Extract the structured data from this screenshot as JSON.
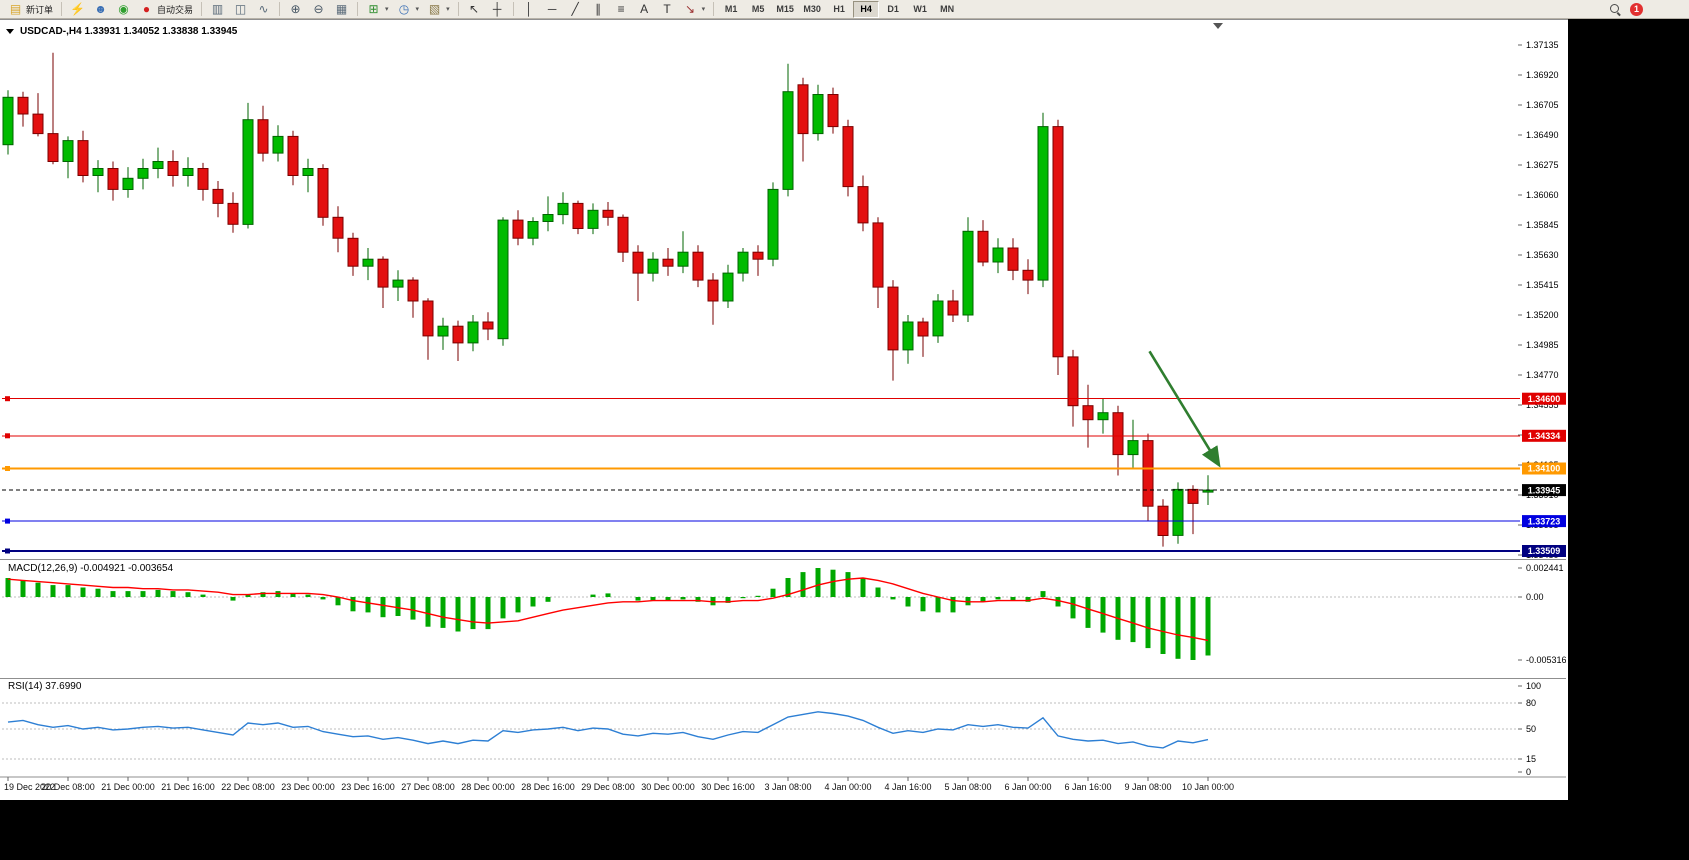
{
  "toolbar": {
    "new_order": {
      "label": "新订单"
    },
    "autotrading": {
      "label": "自动交易"
    },
    "sections": [
      {
        "type": "button",
        "name": "new-order-button",
        "icon_name": "new-order-icon",
        "glyph": "▤",
        "color": "#d8a52c",
        "label_key": "new_order"
      },
      {
        "type": "sep"
      },
      {
        "type": "icon",
        "name": "metaeditor-button",
        "icon_name": "lightning-icon",
        "glyph": "⚡",
        "color": "#c98a10"
      },
      {
        "type": "icon",
        "name": "support-button",
        "icon_name": "headset-icon",
        "glyph": "☻",
        "color": "#3a6fb5"
      },
      {
        "type": "icon",
        "name": "community-button",
        "icon_name": "signal-icon",
        "glyph": "◉",
        "color": "#2f9f2f"
      },
      {
        "type": "button",
        "name": "autotrading-button",
        "icon_name": "autotrading-icon",
        "glyph": "●",
        "color": "#d42020",
        "label_key": "autotrading"
      },
      {
        "type": "sep"
      },
      {
        "type": "icon",
        "name": "bar-chart-button",
        "icon_name": "bar-chart-icon",
        "glyph": "▥",
        "color": "#5a6b7a"
      },
      {
        "type": "icon",
        "name": "candlestick-chart-button",
        "icon_name": "candlestick-icon",
        "glyph": "◫",
        "color": "#5a6b7a"
      },
      {
        "type": "icon",
        "name": "line-chart-button",
        "icon_name": "line-chart-icon",
        "glyph": "∿",
        "color": "#5a6b7a"
      },
      {
        "type": "sep"
      },
      {
        "type": "icon",
        "name": "zoom-in-button",
        "icon_name": "zoom-in-icon",
        "glyph": "⊕",
        "color": "#465664"
      },
      {
        "type": "icon",
        "name": "zoom-out-button",
        "icon_name": "zoom-out-icon",
        "glyph": "⊖",
        "color": "#465664"
      },
      {
        "type": "icon",
        "name": "tile-windows-button",
        "icon_name": "tile-windows-icon",
        "glyph": "▦",
        "color": "#5a6b7a"
      },
      {
        "type": "sep"
      },
      {
        "type": "icon",
        "name": "indicators-button",
        "icon_name": "indicators-icon",
        "glyph": "⊞",
        "color": "#2f8f2f",
        "caret": true
      },
      {
        "type": "icon",
        "name": "periods-button",
        "icon_name": "clock-icon",
        "glyph": "◷",
        "color": "#3a6fb5",
        "caret": true
      },
      {
        "type": "icon",
        "name": "templates-button",
        "icon_name": "template-icon",
        "glyph": "▧",
        "color": "#8a7a4a",
        "caret": true
      },
      {
        "type": "sep"
      },
      {
        "type": "icon",
        "name": "cursor-button",
        "icon_name": "cursor-icon",
        "glyph": "↖",
        "color": "#333333"
      },
      {
        "type": "icon",
        "name": "crosshair-button",
        "icon_name": "crosshair-icon",
        "glyph": "┼",
        "color": "#333333"
      },
      {
        "type": "sep"
      },
      {
        "type": "icon",
        "name": "vertical-line-button",
        "icon_name": "vertical-line-icon",
        "glyph": "│",
        "color": "#333333"
      },
      {
        "type": "icon",
        "name": "horizontal-line-button",
        "icon_name": "horizontal-line-icon",
        "glyph": "─",
        "color": "#333333"
      },
      {
        "type": "icon",
        "name": "trendline-button",
        "icon_name": "trendline-icon",
        "glyph": "╱",
        "color": "#333333"
      },
      {
        "type": "icon",
        "name": "channel-button",
        "icon_name": "channel-icon",
        "glyph": "∥",
        "color": "#333333"
      },
      {
        "type": "icon",
        "name": "fibonacci-button",
        "icon_name": "fibonacci-icon",
        "glyph": "≡",
        "color": "#333333"
      },
      {
        "type": "icon",
        "name": "text-button",
        "icon_name": "text-icon",
        "glyph": "A",
        "color": "#333333"
      },
      {
        "type": "icon",
        "name": "label-button",
        "icon_name": "label-icon",
        "glyph": "T",
        "color": "#333333"
      },
      {
        "type": "icon",
        "name": "arrows-button",
        "icon_name": "arrow-icon",
        "glyph": "↘",
        "color": "#9a2f2f",
        "caret": true
      },
      {
        "type": "sep"
      },
      {
        "type": "timeframes"
      }
    ],
    "timeframes": {
      "items": [
        "M1",
        "M5",
        "M15",
        "M30",
        "H1",
        "H4",
        "D1",
        "W1",
        "MN"
      ],
      "active": "H4"
    },
    "notifications": {
      "count": "1"
    }
  },
  "chart": {
    "title": "USDCAD-,H4 1.33931 1.34052 1.33838 1.33945",
    "symbol": "USDCAD-",
    "period": "H4",
    "open": "1.33931",
    "high": "1.34052",
    "low": "1.33838",
    "close": "1.33945"
  },
  "indicators": {
    "macd": {
      "label": "MACD(12,26,9)",
      "value": "-0.004921",
      "signal_value": "-0.003654",
      "display": "MACD(12,26,9) -0.004921 -0.003654",
      "axis_labels": [
        "0.002441",
        "0.00",
        "-0.005316"
      ]
    },
    "rsi": {
      "label": "RSI(14)",
      "value": "37.6990",
      "display": "RSI(14) 37.6990",
      "axis_labels": [
        "100",
        "80",
        "50",
        "15",
        "0"
      ]
    }
  },
  "chart_data": {
    "type": "candlestick",
    "symbol": "USDCAD-",
    "timeframe": "H4",
    "price_axis": {
      "top_price": 1.37135,
      "price_step": 0.00215,
      "labels": [
        "1.37135",
        "1.36920",
        "1.36705",
        "1.36490",
        "1.36275",
        "1.36060",
        "1.35845",
        "1.35630",
        "1.35415",
        "1.35200",
        "1.34985",
        "1.34770",
        "1.34555",
        "1.34340",
        "1.34125",
        "1.33910",
        "1.33695",
        "1.33480"
      ]
    },
    "time_labels": [
      "19 Dec 2022",
      "20 Dec 08:00",
      "21 Dec 00:00",
      "21 Dec 16:00",
      "22 Dec 08:00",
      "23 Dec 00:00",
      "23 Dec 16:00",
      "27 Dec 08:00",
      "28 Dec 00:00",
      "28 Dec 16:00",
      "29 Dec 08:00",
      "30 Dec 00:00",
      "30 Dec 16:00",
      "3 Jan 08:00",
      "4 Jan 00:00",
      "4 Jan 16:00",
      "5 Jan 08:00",
      "6 Jan 00:00",
      "6 Jan 16:00",
      "9 Jan 08:00",
      "10 Jan 00:00"
    ],
    "candles": [
      [
        1.3642,
        1.3681,
        1.3635,
        1.3676
      ],
      [
        1.3676,
        1.368,
        1.3655,
        1.3664
      ],
      [
        1.3664,
        1.3679,
        1.3648,
        1.365
      ],
      [
        1.365,
        1.3708,
        1.3628,
        1.363
      ],
      [
        1.363,
        1.3648,
        1.3618,
        1.3645
      ],
      [
        1.3645,
        1.3652,
        1.3615,
        1.362
      ],
      [
        1.362,
        1.3631,
        1.3608,
        1.3625
      ],
      [
        1.3625,
        1.363,
        1.3602,
        1.361
      ],
      [
        1.361,
        1.3626,
        1.3604,
        1.3618
      ],
      [
        1.3618,
        1.3632,
        1.361,
        1.3625
      ],
      [
        1.3625,
        1.364,
        1.3618,
        1.363
      ],
      [
        1.363,
        1.3638,
        1.3612,
        1.362
      ],
      [
        1.362,
        1.3633,
        1.3612,
        1.3625
      ],
      [
        1.3625,
        1.3629,
        1.3602,
        1.361
      ],
      [
        1.361,
        1.3616,
        1.359,
        1.36
      ],
      [
        1.36,
        1.3608,
        1.3579,
        1.3585
      ],
      [
        1.3585,
        1.3672,
        1.3582,
        1.366
      ],
      [
        1.366,
        1.367,
        1.363,
        1.3636
      ],
      [
        1.3636,
        1.3656,
        1.363,
        1.3648
      ],
      [
        1.3648,
        1.3652,
        1.3613,
        1.362
      ],
      [
        1.362,
        1.3632,
        1.3608,
        1.3625
      ],
      [
        1.3625,
        1.3628,
        1.3584,
        1.359
      ],
      [
        1.359,
        1.3598,
        1.3565,
        1.3575
      ],
      [
        1.3575,
        1.3579,
        1.3548,
        1.3555
      ],
      [
        1.3555,
        1.3568,
        1.3545,
        1.356
      ],
      [
        1.356,
        1.3562,
        1.3525,
        1.354
      ],
      [
        1.354,
        1.3552,
        1.353,
        1.3545
      ],
      [
        1.3545,
        1.3547,
        1.3518,
        1.353
      ],
      [
        1.353,
        1.3532,
        1.3488,
        1.3505
      ],
      [
        1.3505,
        1.3518,
        1.3495,
        1.3512
      ],
      [
        1.3512,
        1.3516,
        1.3487,
        1.35
      ],
      [
        1.35,
        1.352,
        1.3494,
        1.3515
      ],
      [
        1.3515,
        1.3522,
        1.3502,
        1.351
      ],
      [
        1.3503,
        1.359,
        1.3498,
        1.3588
      ],
      [
        1.3588,
        1.3595,
        1.357,
        1.3575
      ],
      [
        1.3575,
        1.359,
        1.357,
        1.3587
      ],
      [
        1.3587,
        1.3605,
        1.358,
        1.3592
      ],
      [
        1.3592,
        1.3608,
        1.3585,
        1.36
      ],
      [
        1.36,
        1.3602,
        1.3578,
        1.3582
      ],
      [
        1.3582,
        1.36,
        1.3578,
        1.3595
      ],
      [
        1.3595,
        1.3601,
        1.3584,
        1.359
      ],
      [
        1.359,
        1.3592,
        1.3558,
        1.3565
      ],
      [
        1.3565,
        1.357,
        1.353,
        1.355
      ],
      [
        1.355,
        1.3565,
        1.3544,
        1.356
      ],
      [
        1.356,
        1.3568,
        1.3548,
        1.3555
      ],
      [
        1.3555,
        1.358,
        1.355,
        1.3565
      ],
      [
        1.3565,
        1.357,
        1.354,
        1.3545
      ],
      [
        1.3545,
        1.355,
        1.3513,
        1.353
      ],
      [
        1.353,
        1.3556,
        1.3525,
        1.355
      ],
      [
        1.355,
        1.3568,
        1.3544,
        1.3565
      ],
      [
        1.3565,
        1.357,
        1.3548,
        1.356
      ],
      [
        1.356,
        1.3615,
        1.3555,
        1.361
      ],
      [
        1.361,
        1.37,
        1.3605,
        1.368
      ],
      [
        1.3685,
        1.369,
        1.363,
        1.365
      ],
      [
        1.365,
        1.3685,
        1.3645,
        1.3678
      ],
      [
        1.3678,
        1.3683,
        1.365,
        1.3655
      ],
      [
        1.3655,
        1.366,
        1.3605,
        1.3612
      ],
      [
        1.3612,
        1.362,
        1.358,
        1.3586
      ],
      [
        1.3586,
        1.359,
        1.3525,
        1.354
      ],
      [
        1.354,
        1.3545,
        1.3473,
        1.3495
      ],
      [
        1.3495,
        1.352,
        1.3485,
        1.3515
      ],
      [
        1.3515,
        1.3518,
        1.349,
        1.3505
      ],
      [
        1.3505,
        1.3535,
        1.35,
        1.353
      ],
      [
        1.353,
        1.3538,
        1.3515,
        1.352
      ],
      [
        1.352,
        1.359,
        1.3515,
        1.358
      ],
      [
        1.358,
        1.3588,
        1.3555,
        1.3558
      ],
      [
        1.3558,
        1.3575,
        1.355,
        1.3568
      ],
      [
        1.3568,
        1.3575,
        1.3545,
        1.3552
      ],
      [
        1.3552,
        1.356,
        1.3535,
        1.3545
      ],
      [
        1.3545,
        1.3665,
        1.354,
        1.3655
      ],
      [
        1.3655,
        1.366,
        1.3477,
        1.349
      ],
      [
        1.349,
        1.3495,
        1.344,
        1.3455
      ],
      [
        1.3455,
        1.347,
        1.3425,
        1.3445
      ],
      [
        1.3445,
        1.346,
        1.3435,
        1.345
      ],
      [
        1.345,
        1.3455,
        1.3405,
        1.342
      ],
      [
        1.342,
        1.3445,
        1.341,
        1.343
      ],
      [
        1.343,
        1.3435,
        1.3372,
        1.3383
      ],
      [
        1.3383,
        1.3388,
        1.3354,
        1.3362
      ],
      [
        1.3362,
        1.34,
        1.3356,
        1.3395
      ],
      [
        1.3395,
        1.3398,
        1.3363,
        1.3385
      ],
      [
        1.33931,
        1.34052,
        1.33838,
        1.33945
      ]
    ],
    "hlines": [
      {
        "price": "1.34600",
        "value": 1.346,
        "color": "#e00000",
        "style": "solid",
        "width": 1,
        "current": false
      },
      {
        "price": "1.34334",
        "value": 1.34334,
        "color": "#e00000",
        "style": "solid",
        "width": 1,
        "current": false
      },
      {
        "price": "1.34100",
        "value": 1.341,
        "color": "#ff9900",
        "style": "solid",
        "width": 2,
        "current": false
      },
      {
        "price": "1.33945",
        "value": 1.33945,
        "color": "#000000",
        "style": "dash",
        "width": 1,
        "current": true
      },
      {
        "price": "1.33723",
        "value": 1.33723,
        "color": "#0000e0",
        "style": "solid",
        "width": 1,
        "current": false
      },
      {
        "price": "1.33509",
        "value": 1.33509,
        "color": "#000080",
        "style": "solid",
        "width": 2,
        "current": false
      }
    ],
    "trend_arrow": {
      "from_bar": 76.1,
      "from_price": 1.3494,
      "to_bar": 80.7,
      "to_price": 1.3413,
      "color": "#2f7e2f"
    },
    "macd": {
      "range": {
        "max": 0.002441,
        "min": -0.005316
      },
      "values": [
        0.0016,
        0.0014,
        0.0012,
        0.001,
        0.001,
        0.0008,
        0.0007,
        0.0005,
        0.0005,
        0.0005,
        0.0006,
        0.0005,
        0.0004,
        0.0002,
        0.0,
        -0.0003,
        0.0002,
        0.0004,
        0.0005,
        0.0003,
        0.0002,
        -0.0002,
        -0.0007,
        -0.0012,
        -0.0013,
        -0.0017,
        -0.0016,
        -0.0019,
        -0.0025,
        -0.0026,
        -0.0029,
        -0.0027,
        -0.0027,
        -0.0018,
        -0.0013,
        -0.0008,
        -0.0004,
        0.0,
        0.0,
        0.0002,
        0.0003,
        0.0,
        -0.0003,
        -0.0003,
        -0.0003,
        -0.0002,
        -0.0004,
        -0.0007,
        -0.0005,
        -0.0001,
        0.0001,
        0.0007,
        0.0016,
        0.0021,
        0.002441,
        0.0023,
        0.0021,
        0.0016,
        0.0008,
        -0.0002,
        -0.0008,
        -0.0012,
        -0.0013,
        -0.0013,
        -0.0007,
        -0.0004,
        -0.0002,
        -0.0003,
        -0.0004,
        0.0005,
        -0.0008,
        -0.0018,
        -0.0026,
        -0.003,
        -0.0036,
        -0.0038,
        -0.0043,
        -0.0048,
        -0.0052,
        -0.0053,
        -0.004921
      ],
      "signal": [
        0.0015,
        0.0014,
        0.0013,
        0.0012,
        0.0011,
        0.001,
        0.0009,
        0.0008,
        0.0008,
        0.0007,
        0.0007,
        0.0006,
        0.0006,
        0.0005,
        0.0004,
        0.0002,
        0.0002,
        0.0003,
        0.0003,
        0.0003,
        0.0003,
        0.0002,
        0.0,
        -0.0003,
        -0.0005,
        -0.0007,
        -0.0009,
        -0.0011,
        -0.0014,
        -0.0017,
        -0.0019,
        -0.0021,
        -0.0022,
        -0.0021,
        -0.002,
        -0.0017,
        -0.0014,
        -0.0011,
        -0.0009,
        -0.0007,
        -0.0005,
        -0.0004,
        -0.0004,
        -0.0003,
        -0.0003,
        -0.0003,
        -0.0003,
        -0.0004,
        -0.0004,
        -0.0003,
        -0.0003,
        -0.0001,
        0.0002,
        0.0006,
        0.001,
        0.0013,
        0.0015,
        0.0016,
        0.0014,
        0.0011,
        0.0007,
        0.0003,
        0.0,
        -0.0003,
        -0.0004,
        -0.0004,
        -0.0003,
        -0.0003,
        -0.0003,
        -0.0001,
        -0.0003,
        -0.0006,
        -0.001,
        -0.0014,
        -0.0018,
        -0.0022,
        -0.0026,
        -0.0029,
        -0.0032,
        -0.0034,
        -0.003654
      ]
    },
    "rsi": {
      "range": [
        0,
        100
      ],
      "levels": [
        80,
        50,
        15
      ],
      "values": [
        58,
        60,
        55,
        52,
        54,
        50,
        52,
        49,
        50,
        52,
        53,
        51,
        52,
        49,
        46,
        43,
        57,
        55,
        57,
        52,
        53,
        47,
        44,
        41,
        42,
        38,
        40,
        37,
        33,
        36,
        33,
        37,
        36,
        48,
        46,
        49,
        50,
        52,
        48,
        51,
        50,
        44,
        42,
        45,
        44,
        46,
        41,
        38,
        43,
        47,
        46,
        55,
        64,
        67,
        70,
        68,
        65,
        60,
        52,
        45,
        48,
        46,
        50,
        49,
        55,
        53,
        55,
        52,
        51,
        63,
        42,
        38,
        36,
        37,
        33,
        35,
        30,
        28,
        36,
        34,
        37.699
      ]
    }
  },
  "colors": {
    "bull": "#00bb00",
    "bull_stroke": "#006400",
    "bear": "#e31010",
    "bear_stroke": "#7a0000",
    "macd_hist": "#00a800",
    "macd_signal": "#ff0000",
    "rsi_line": "#2d7fd4",
    "dotted_level": "#bdbdbd",
    "badge_text": "#ffffff"
  }
}
